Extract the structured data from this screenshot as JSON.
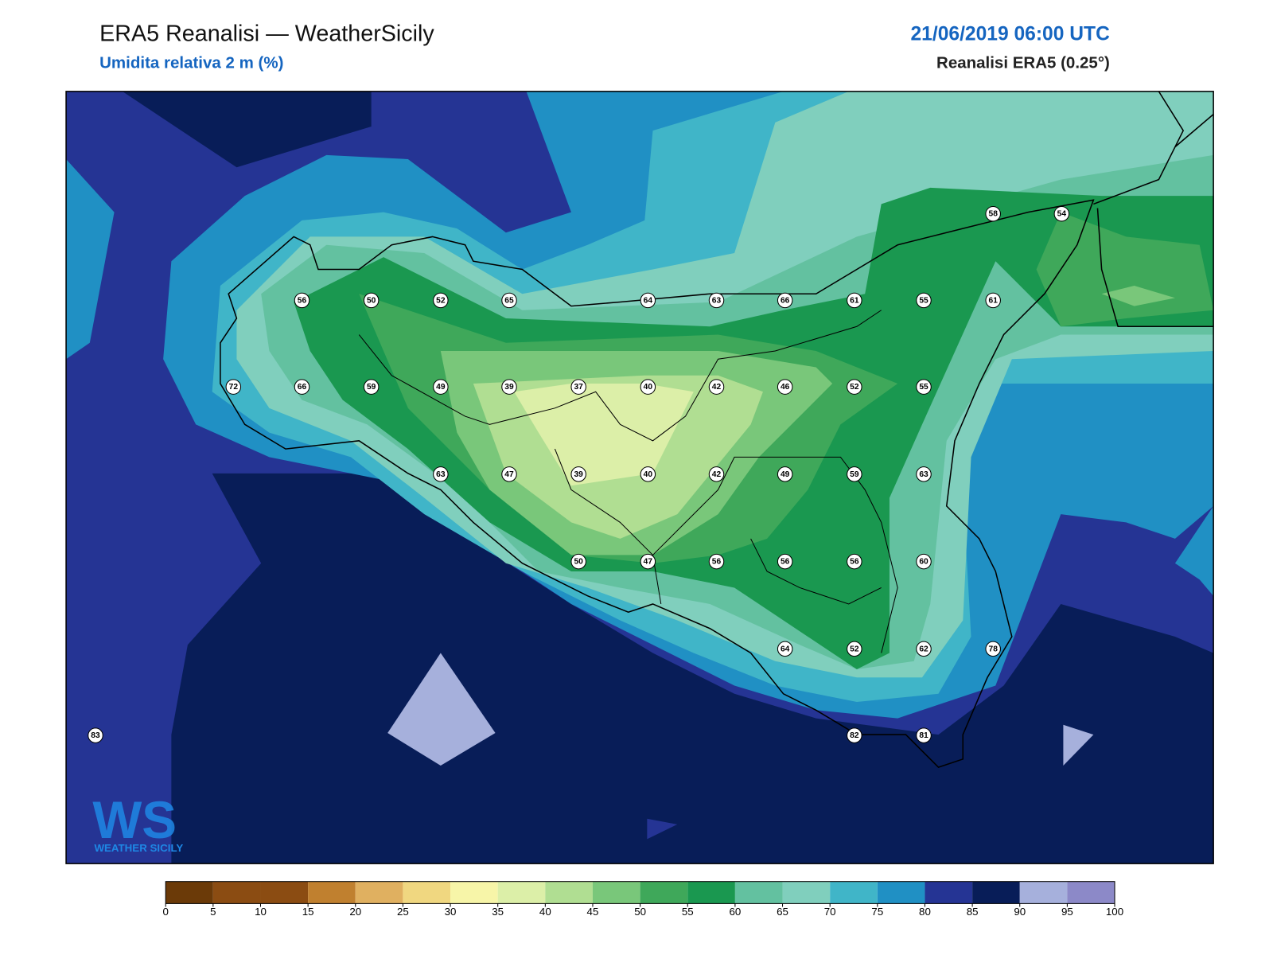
{
  "header": {
    "title": "ERA5 Reanalisi — WeatherSicily",
    "subtitle": "Umidita relativa 2 m (%)",
    "datetime": "21/06/2019 06:00 UTC",
    "source": "Reanalisi ERA5 (0.25°)"
  },
  "stations": [
    56,
    50,
    52,
    65,
    64,
    63,
    66,
    61,
    55,
    61,
    58,
    54,
    72,
    66,
    59,
    49,
    39,
    37,
    40,
    42,
    46,
    52,
    55,
    63,
    47,
    39,
    40,
    42,
    49,
    59,
    63,
    50,
    47,
    56,
    56,
    56,
    60,
    64,
    52,
    62,
    78,
    83,
    82,
    81
  ],
  "colorbar": {
    "ticks": [
      0,
      5,
      10,
      15,
      20,
      25,
      30,
      35,
      40,
      45,
      50,
      55,
      60,
      65,
      70,
      75,
      80,
      85,
      90,
      95,
      100
    ],
    "colors": [
      "#6b3a08",
      "#8b4c12",
      "#8b4c12",
      "#c0802f",
      "#e0b060",
      "#f0d780",
      "#f7f5a8",
      "#dcefa8",
      "#b0de92",
      "#79c77a",
      "#3fa85a",
      "#1a9850",
      "#63c1a0",
      "#80cfbd",
      "#40b5c8",
      "#2090c4",
      "#253494",
      "#081d58",
      "#a6b0dc",
      "#8c89c8"
    ]
  },
  "logo": {
    "mark": "WS",
    "name": "WEATHER SICILY"
  }
}
